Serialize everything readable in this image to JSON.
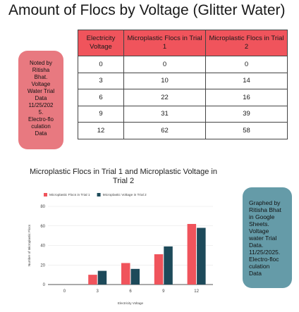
{
  "page": {
    "title": "Amount of Flocs by Voltage (Glitter Water)"
  },
  "table": {
    "headers": [
      "Electricity Voltage",
      "Microplastic Flocs in Trial 1",
      "Microplastic Flocs in Trial 2"
    ],
    "rows": [
      [
        "0",
        "0",
        "0"
      ],
      [
        "3",
        "10",
        "14"
      ],
      [
        "6",
        "22",
        "16"
      ],
      [
        "9",
        "31",
        "39"
      ],
      [
        "12",
        "62",
        "58"
      ]
    ]
  },
  "notes": {
    "left": "Noted by\nRitisha\nBhat.\nVoltage\nWater Trial\nData\n11/25/202\n5.\nElectro-flo\nculation\nData",
    "right": "Graphed by\nRitisha Bhat\nin Google\nSheets.\nVoltage\nwater Trial\nData.\n11/25/2025.\nElectro-floc\nculation\nData"
  },
  "chart_data": {
    "type": "bar",
    "title": "Microplastic Flocs in Trial 1 and Microplastic Voltage in Trial 2",
    "xlabel": "Electricity Voltage",
    "ylabel": "Number of Microplastic Flocs",
    "categories": [
      "0",
      "3",
      "6",
      "9",
      "12"
    ],
    "series": [
      {
        "name": "Microplastic Flocs in Trial 1",
        "values": [
          0,
          10,
          22,
          31,
          62
        ],
        "color": "#f0545c"
      },
      {
        "name": "Microplastic Voltage in Trial 2",
        "values": [
          0,
          14,
          16,
          39,
          58
        ],
        "color": "#1d4a5a"
      }
    ],
    "ylim": [
      0,
      80
    ],
    "yticks": [
      0,
      20,
      40,
      60,
      80
    ],
    "grid": true,
    "legend": "top-left"
  }
}
